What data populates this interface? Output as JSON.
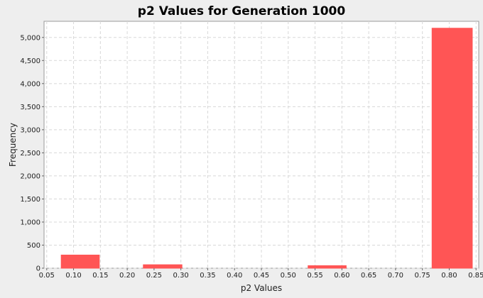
{
  "chart_data": {
    "type": "bar",
    "title": "p2 Values for Generation 1000",
    "xlabel": "p2 Values",
    "ylabel": "Frequency",
    "xlim": [
      0.045,
      0.855
    ],
    "ylim": [
      0,
      5350
    ],
    "x_ticks": [
      "0.05",
      "0.10",
      "0.15",
      "0.20",
      "0.25",
      "0.30",
      "0.35",
      "0.40",
      "0.45",
      "0.50",
      "0.55",
      "0.60",
      "0.65",
      "0.70",
      "0.75",
      "0.80",
      "0.85"
    ],
    "y_ticks": [
      "0",
      "500",
      "1,000",
      "1,500",
      "2,000",
      "2,500",
      "3,000",
      "3,500",
      "4,000",
      "4,500",
      "5,000"
    ],
    "bins": [
      {
        "start": 0.077,
        "end": 0.148,
        "value": 285
      },
      {
        "start": 0.23,
        "end": 0.302,
        "value": 75
      },
      {
        "start": 0.537,
        "end": 0.608,
        "value": 55
      },
      {
        "start": 0.768,
        "end": 0.843,
        "value": 5200
      }
    ],
    "grid": true,
    "legend": "none",
    "bar_color": "#ff5555"
  }
}
